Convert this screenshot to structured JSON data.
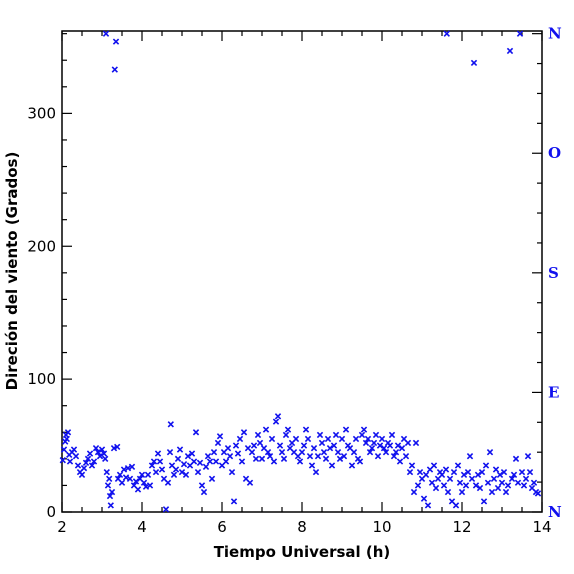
{
  "chart_data": {
    "type": "scatter",
    "xlabel": "Tiempo Universal (h)",
    "ylabel": "Direción del viento (Grados)",
    "xlim": [
      2,
      14
    ],
    "ylim": [
      0,
      362
    ],
    "x_ticks": [
      2,
      4,
      6,
      8,
      10,
      12,
      14
    ],
    "y_ticks": [
      0,
      100,
      200,
      300
    ],
    "right_axis_labels": [
      {
        "label": "N",
        "value": 0
      },
      {
        "label": "E",
        "value": 90
      },
      {
        "label": "S",
        "value": 180
      },
      {
        "label": "O",
        "value": 270
      },
      {
        "label": "N",
        "value": 360
      }
    ],
    "grid": false,
    "marker": "x",
    "colors": {
      "points": "#1010ee",
      "axis": "#000000",
      "right_labels": "#1010ee"
    },
    "points": [
      [
        2.02,
        39
      ],
      [
        2.05,
        47
      ],
      [
        2.08,
        53
      ],
      [
        2.1,
        58
      ],
      [
        2.12,
        55
      ],
      [
        2.15,
        60
      ],
      [
        2.18,
        43
      ],
      [
        2.2,
        38
      ],
      [
        2.25,
        45
      ],
      [
        2.3,
        47
      ],
      [
        2.35,
        42
      ],
      [
        2.4,
        35
      ],
      [
        2.45,
        30
      ],
      [
        2.5,
        28
      ],
      [
        2.55,
        33
      ],
      [
        2.6,
        37
      ],
      [
        2.65,
        40
      ],
      [
        2.7,
        44
      ],
      [
        2.75,
        35
      ],
      [
        2.8,
        38
      ],
      [
        2.85,
        48
      ],
      [
        2.9,
        45
      ],
      [
        2.95,
        42
      ],
      [
        3.0,
        47
      ],
      [
        3.05,
        44
      ],
      [
        3.08,
        40
      ],
      [
        3.1,
        360
      ],
      [
        3.12,
        30
      ],
      [
        3.15,
        20
      ],
      [
        3.18,
        25
      ],
      [
        3.2,
        12
      ],
      [
        3.22,
        5
      ],
      [
        3.25,
        15
      ],
      [
        3.3,
        48
      ],
      [
        3.32,
        333
      ],
      [
        3.35,
        354
      ],
      [
        3.38,
        49
      ],
      [
        3.4,
        25
      ],
      [
        3.45,
        28
      ],
      [
        3.5,
        22
      ],
      [
        3.55,
        32
      ],
      [
        3.6,
        26
      ],
      [
        3.65,
        33
      ],
      [
        3.7,
        25
      ],
      [
        3.75,
        34
      ],
      [
        3.8,
        20
      ],
      [
        3.85,
        23
      ],
      [
        3.9,
        17
      ],
      [
        3.95,
        25
      ],
      [
        4.0,
        28
      ],
      [
        4.05,
        22
      ],
      [
        4.1,
        19
      ],
      [
        4.15,
        28
      ],
      [
        4.2,
        20
      ],
      [
        4.25,
        35
      ],
      [
        4.3,
        38
      ],
      [
        4.35,
        30
      ],
      [
        4.4,
        44
      ],
      [
        4.45,
        38
      ],
      [
        4.5,
        32
      ],
      [
        4.55,
        25
      ],
      [
        4.6,
        2
      ],
      [
        4.65,
        22
      ],
      [
        4.7,
        45
      ],
      [
        4.72,
        66
      ],
      [
        4.75,
        35
      ],
      [
        4.8,
        28
      ],
      [
        4.85,
        32
      ],
      [
        4.9,
        40
      ],
      [
        4.95,
        47
      ],
      [
        5.0,
        30
      ],
      [
        5.05,
        36
      ],
      [
        5.1,
        28
      ],
      [
        5.15,
        42
      ],
      [
        5.2,
        35
      ],
      [
        5.25,
        44
      ],
      [
        5.3,
        38
      ],
      [
        5.35,
        60
      ],
      [
        5.4,
        30
      ],
      [
        5.45,
        37
      ],
      [
        5.5,
        20
      ],
      [
        5.55,
        15
      ],
      [
        5.6,
        34
      ],
      [
        5.65,
        42
      ],
      [
        5.7,
        38
      ],
      [
        5.75,
        25
      ],
      [
        5.8,
        45
      ],
      [
        5.85,
        38
      ],
      [
        5.9,
        52
      ],
      [
        5.95,
        57
      ],
      [
        6.0,
        35
      ],
      [
        6.05,
        45
      ],
      [
        6.1,
        38
      ],
      [
        6.15,
        48
      ],
      [
        6.2,
        42
      ],
      [
        6.25,
        30
      ],
      [
        6.3,
        8
      ],
      [
        6.35,
        50
      ],
      [
        6.4,
        44
      ],
      [
        6.45,
        55
      ],
      [
        6.5,
        38
      ],
      [
        6.55,
        60
      ],
      [
        6.6,
        25
      ],
      [
        6.65,
        48
      ],
      [
        6.7,
        22
      ],
      [
        6.75,
        45
      ],
      [
        6.8,
        50
      ],
      [
        6.85,
        40
      ],
      [
        6.9,
        58
      ],
      [
        6.95,
        52
      ],
      [
        7.0,
        40
      ],
      [
        7.05,
        48
      ],
      [
        7.1,
        62
      ],
      [
        7.15,
        45
      ],
      [
        7.2,
        42
      ],
      [
        7.25,
        55
      ],
      [
        7.3,
        38
      ],
      [
        7.35,
        68
      ],
      [
        7.4,
        72
      ],
      [
        7.45,
        50
      ],
      [
        7.5,
        45
      ],
      [
        7.55,
        40
      ],
      [
        7.6,
        58
      ],
      [
        7.65,
        62
      ],
      [
        7.7,
        48
      ],
      [
        7.75,
        52
      ],
      [
        7.8,
        45
      ],
      [
        7.85,
        55
      ],
      [
        7.9,
        42
      ],
      [
        7.95,
        38
      ],
      [
        8.0,
        45
      ],
      [
        8.05,
        50
      ],
      [
        8.1,
        62
      ],
      [
        8.15,
        55
      ],
      [
        8.2,
        42
      ],
      [
        8.25,
        35
      ],
      [
        8.3,
        48
      ],
      [
        8.35,
        30
      ],
      [
        8.4,
        42
      ],
      [
        8.45,
        58
      ],
      [
        8.5,
        52
      ],
      [
        8.55,
        45
      ],
      [
        8.6,
        40
      ],
      [
        8.65,
        55
      ],
      [
        8.7,
        48
      ],
      [
        8.75,
        35
      ],
      [
        8.8,
        50
      ],
      [
        8.85,
        58
      ],
      [
        8.9,
        45
      ],
      [
        8.95,
        40
      ],
      [
        9.0,
        55
      ],
      [
        9.05,
        42
      ],
      [
        9.1,
        62
      ],
      [
        9.15,
        50
      ],
      [
        9.2,
        48
      ],
      [
        9.25,
        35
      ],
      [
        9.3,
        45
      ],
      [
        9.35,
        55
      ],
      [
        9.4,
        40
      ],
      [
        9.45,
        38
      ],
      [
        9.5,
        58
      ],
      [
        9.55,
        62
      ],
      [
        9.6,
        52
      ],
      [
        9.65,
        55
      ],
      [
        9.7,
        45
      ],
      [
        9.75,
        48
      ],
      [
        9.8,
        52
      ],
      [
        9.85,
        58
      ],
      [
        9.9,
        42
      ],
      [
        9.95,
        50
      ],
      [
        10.0,
        55
      ],
      [
        10.05,
        48
      ],
      [
        10.1,
        45
      ],
      [
        10.15,
        52
      ],
      [
        10.2,
        50
      ],
      [
        10.25,
        58
      ],
      [
        10.3,
        42
      ],
      [
        10.35,
        45
      ],
      [
        10.4,
        50
      ],
      [
        10.45,
        38
      ],
      [
        10.5,
        48
      ],
      [
        10.55,
        55
      ],
      [
        10.6,
        42
      ],
      [
        10.65,
        52
      ],
      [
        10.7,
        30
      ],
      [
        10.75,
        35
      ],
      [
        10.8,
        15
      ],
      [
        10.85,
        52
      ],
      [
        10.9,
        20
      ],
      [
        10.95,
        30
      ],
      [
        11.0,
        25
      ],
      [
        11.05,
        10
      ],
      [
        11.1,
        28
      ],
      [
        11.15,
        5
      ],
      [
        11.2,
        32
      ],
      [
        11.25,
        22
      ],
      [
        11.3,
        35
      ],
      [
        11.35,
        18
      ],
      [
        11.4,
        25
      ],
      [
        11.45,
        30
      ],
      [
        11.5,
        28
      ],
      [
        11.55,
        20
      ],
      [
        11.6,
        32
      ],
      [
        11.62,
        360
      ],
      [
        11.65,
        15
      ],
      [
        11.7,
        25
      ],
      [
        11.75,
        8
      ],
      [
        11.8,
        30
      ],
      [
        11.85,
        5
      ],
      [
        11.9,
        35
      ],
      [
        11.95,
        22
      ],
      [
        12.0,
        15
      ],
      [
        12.05,
        28
      ],
      [
        12.1,
        20
      ],
      [
        12.15,
        30
      ],
      [
        12.2,
        42
      ],
      [
        12.25,
        25
      ],
      [
        12.3,
        338
      ],
      [
        12.35,
        20
      ],
      [
        12.4,
        28
      ],
      [
        12.45,
        18
      ],
      [
        12.5,
        30
      ],
      [
        12.55,
        8
      ],
      [
        12.6,
        35
      ],
      [
        12.65,
        22
      ],
      [
        12.7,
        45
      ],
      [
        12.75,
        15
      ],
      [
        12.8,
        25
      ],
      [
        12.85,
        32
      ],
      [
        12.9,
        18
      ],
      [
        12.95,
        28
      ],
      [
        13.0,
        22
      ],
      [
        13.05,
        30
      ],
      [
        13.1,
        15
      ],
      [
        13.15,
        20
      ],
      [
        13.2,
        347
      ],
      [
        13.25,
        25
      ],
      [
        13.3,
        28
      ],
      [
        13.35,
        40
      ],
      [
        13.4,
        22
      ],
      [
        13.45,
        360
      ],
      [
        13.5,
        30
      ],
      [
        13.55,
        20
      ],
      [
        13.6,
        25
      ],
      [
        13.65,
        42
      ],
      [
        13.7,
        30
      ],
      [
        13.75,
        18
      ],
      [
        13.8,
        22
      ],
      [
        13.85,
        15
      ],
      [
        13.9,
        14
      ]
    ]
  }
}
